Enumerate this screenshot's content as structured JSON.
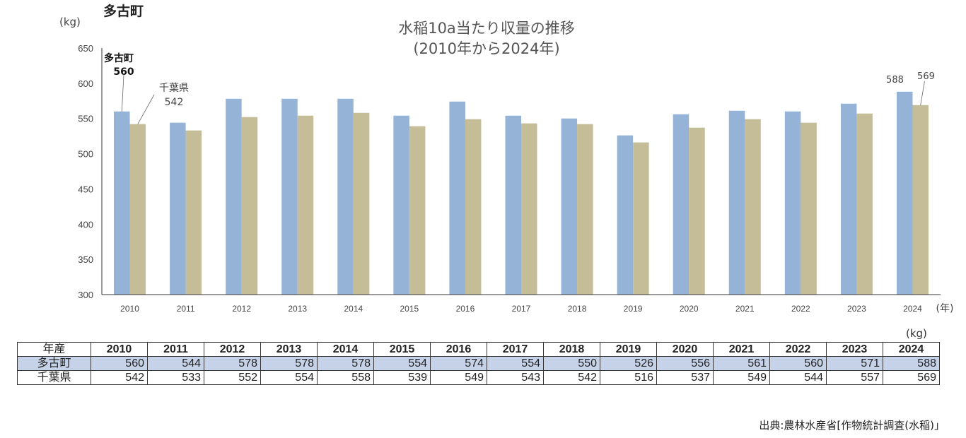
{
  "corner_title": "多古町",
  "unit_kg": "(kg)",
  "title_line1": "水稲10a当たり収量の推移",
  "title_line2": "(2010年から2024年)",
  "x_unit": "(年)",
  "colors": {
    "town": "#95b3d7",
    "pref": "#c4bd97",
    "axis": "#333333",
    "town_row": "#c6d2e8"
  },
  "chart_data": {
    "type": "bar",
    "title": "水稲10a当たり収量の推移 (2010年から2024年)",
    "ylabel": "(kg)",
    "xlabel": "(年)",
    "ylim": [
      300,
      650
    ],
    "yticks": [
      300,
      350,
      400,
      450,
      500,
      550,
      600,
      650
    ],
    "categories": [
      "2010",
      "2011",
      "2012",
      "2013",
      "2014",
      "2015",
      "2016",
      "2017",
      "2018",
      "2019",
      "2020",
      "2021",
      "2022",
      "2023",
      "2024"
    ],
    "series": [
      {
        "name": "多古町",
        "values": [
          560,
          544,
          578,
          578,
          578,
          554,
          574,
          554,
          550,
          526,
          556,
          561,
          560,
          571,
          588
        ]
      },
      {
        "name": "千葉県",
        "values": [
          542,
          533,
          552,
          554,
          558,
          539,
          549,
          543,
          542,
          516,
          537,
          549,
          544,
          557,
          569
        ]
      }
    ],
    "annotations": [
      {
        "series": "多古町",
        "label": "多古町",
        "value": "560",
        "year": "2010"
      },
      {
        "series": "千葉県",
        "label": "千葉県",
        "value": "542",
        "year": "2010"
      },
      {
        "series": "多古町",
        "value": "588",
        "year": "2024"
      },
      {
        "series": "千葉県",
        "value": "569",
        "year": "2024"
      }
    ],
    "grid": false
  },
  "table": {
    "unit": "(kg)",
    "header_label": "年産",
    "years": [
      "2010",
      "2011",
      "2012",
      "2013",
      "2014",
      "2015",
      "2016",
      "2017",
      "2018",
      "2019",
      "2020",
      "2021",
      "2022",
      "2023",
      "2024"
    ],
    "rows": [
      {
        "label": "多古町",
        "values": [
          "560",
          "544",
          "578",
          "578",
          "578",
          "554",
          "574",
          "554",
          "550",
          "526",
          "556",
          "561",
          "560",
          "571",
          "588"
        ]
      },
      {
        "label": "千葉県",
        "values": [
          "542",
          "533",
          "552",
          "554",
          "558",
          "539",
          "549",
          "543",
          "542",
          "516",
          "537",
          "549",
          "544",
          "557",
          "569"
        ]
      }
    ]
  },
  "source": "出典:農林水産省[作物統計調査(水稲)」"
}
